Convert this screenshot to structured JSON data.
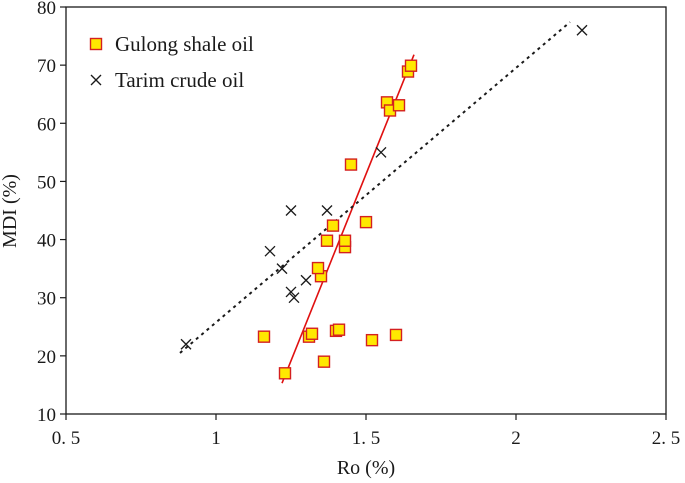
{
  "chart_data": {
    "type": "scatter",
    "xlabel": "Ro (%)",
    "ylabel": "MDI (%)",
    "xlim": [
      0.5,
      2.5
    ],
    "ylim": [
      10,
      80
    ],
    "x_ticks": [
      {
        "value": 0.5,
        "label": "0. 5"
      },
      {
        "value": 1,
        "label": "1"
      },
      {
        "value": 1.5,
        "label": "1. 5"
      },
      {
        "value": 2,
        "label": "2"
      },
      {
        "value": 2.5,
        "label": "2. 5"
      }
    ],
    "y_ticks": [
      {
        "value": 10,
        "label": "10"
      },
      {
        "value": 20,
        "label": "20"
      },
      {
        "value": 30,
        "label": "30"
      },
      {
        "value": 40,
        "label": "40"
      },
      {
        "value": 50,
        "label": "50"
      },
      {
        "value": 60,
        "label": "60"
      },
      {
        "value": 70,
        "label": "70"
      },
      {
        "value": 80,
        "label": "80"
      }
    ],
    "legend_position": "top-left",
    "series": [
      {
        "name": "Gulong shale oil",
        "marker": "square",
        "fill_color": "#FFE800",
        "edge_color": "#D42020",
        "points": [
          {
            "x": 1.23,
            "y": 17
          },
          {
            "x": 1.16,
            "y": 23.3
          },
          {
            "x": 1.31,
            "y": 23.3
          },
          {
            "x": 1.32,
            "y": 23.8
          },
          {
            "x": 1.36,
            "y": 19
          },
          {
            "x": 1.4,
            "y": 24.3
          },
          {
            "x": 1.41,
            "y": 24.5
          },
          {
            "x": 1.52,
            "y": 22.7
          },
          {
            "x": 1.6,
            "y": 23.6
          },
          {
            "x": 1.35,
            "y": 33.7
          },
          {
            "x": 1.34,
            "y": 35.1
          },
          {
            "x": 1.43,
            "y": 38.7
          },
          {
            "x": 1.43,
            "y": 39.8
          },
          {
            "x": 1.37,
            "y": 39.8
          },
          {
            "x": 1.39,
            "y": 42.4
          },
          {
            "x": 1.5,
            "y": 43
          },
          {
            "x": 1.45,
            "y": 52.9
          },
          {
            "x": 1.57,
            "y": 63.6
          },
          {
            "x": 1.58,
            "y": 62.2
          },
          {
            "x": 1.61,
            "y": 63.1
          },
          {
            "x": 1.64,
            "y": 68.9
          },
          {
            "x": 1.65,
            "y": 69.9
          }
        ]
      },
      {
        "name": "Tarim crude oil",
        "marker": "x",
        "color": "#1a1a1a",
        "points": [
          {
            "x": 0.9,
            "y": 22
          },
          {
            "x": 1.18,
            "y": 38
          },
          {
            "x": 1.22,
            "y": 35
          },
          {
            "x": 1.25,
            "y": 31
          },
          {
            "x": 1.26,
            "y": 30
          },
          {
            "x": 1.3,
            "y": 33
          },
          {
            "x": 1.25,
            "y": 45
          },
          {
            "x": 1.37,
            "y": 45
          },
          {
            "x": 1.55,
            "y": 55
          },
          {
            "x": 2.22,
            "y": 76
          }
        ]
      }
    ],
    "trend_lines": [
      {
        "series": "Gulong shale oil",
        "style": "solid",
        "color": "#E01010",
        "from": [
          1.22,
          15.3
        ],
        "to": [
          1.66,
          71.8
        ]
      },
      {
        "series": "Tarim crude oil",
        "style": "dotted",
        "color": "#1a1a1a",
        "from": [
          0.88,
          20.5
        ],
        "to": [
          2.18,
          77.4
        ]
      }
    ]
  }
}
